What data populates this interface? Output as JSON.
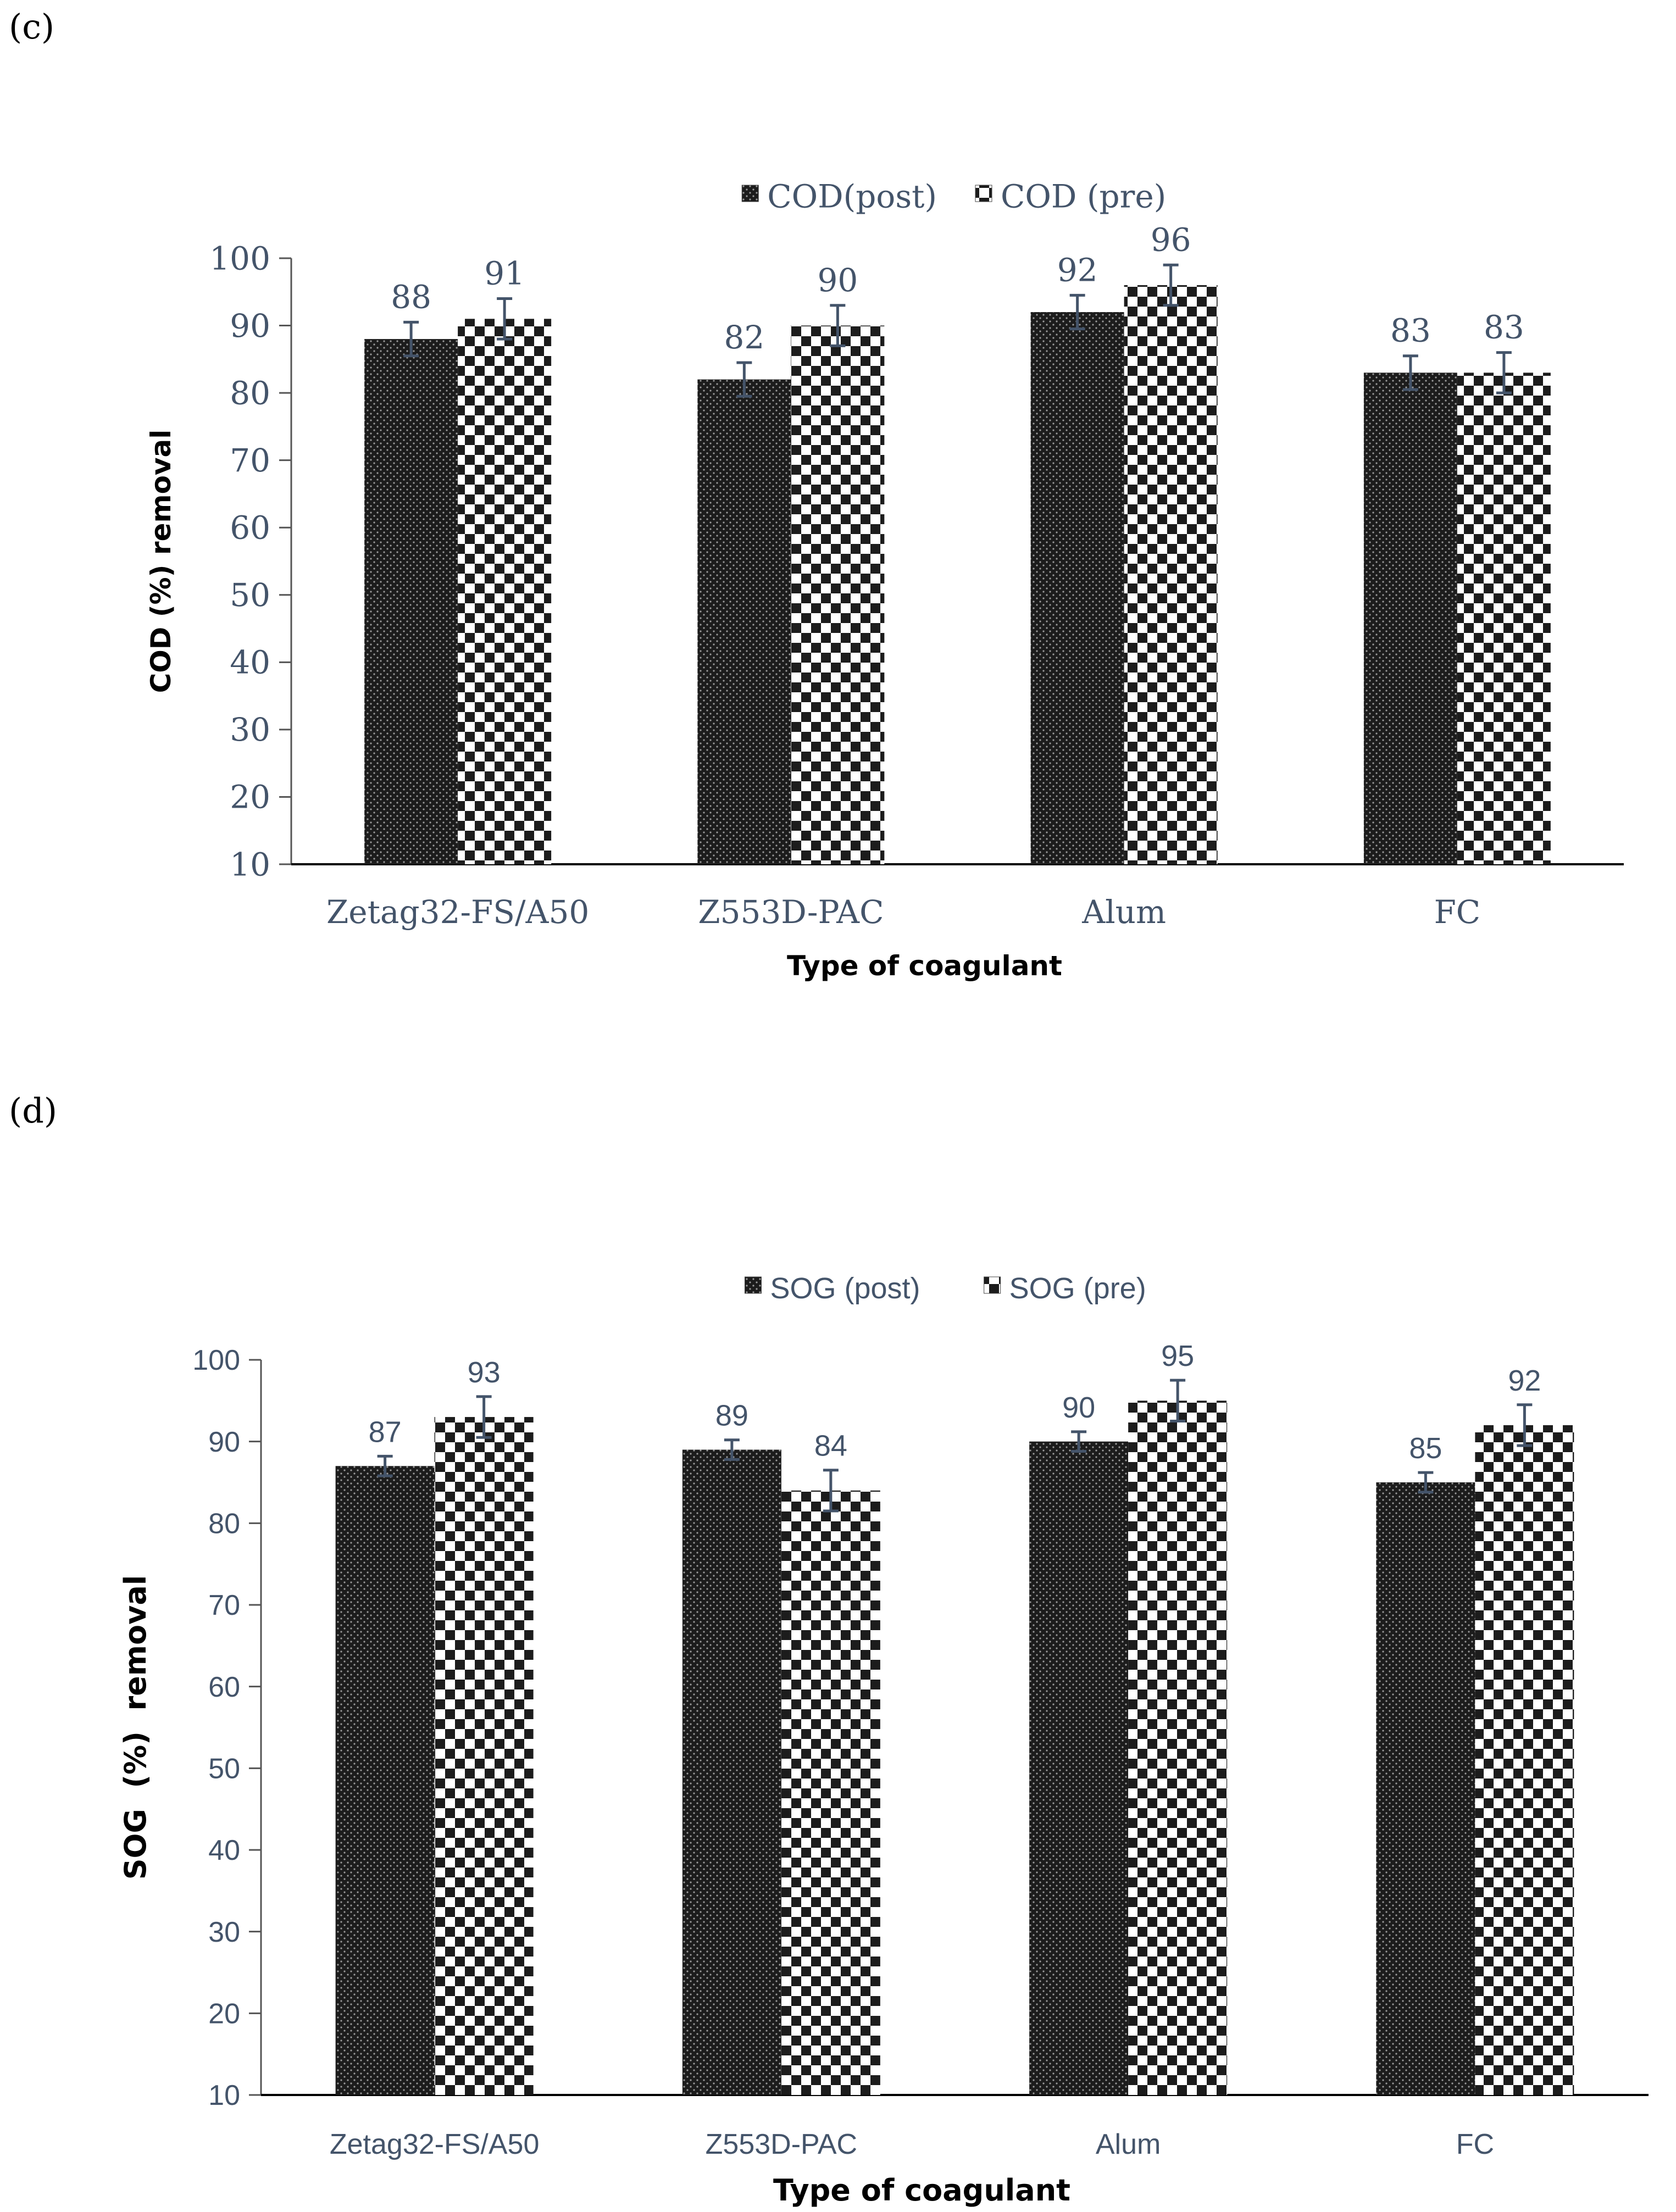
{
  "panels": {
    "c_label": "(c)",
    "d_label": "(d)"
  },
  "colors": {
    "bar_dark": "#1c1c1c",
    "axis": "#000000",
    "tick_text": "#44546a",
    "label_text": "#000000"
  },
  "chart_data": [
    {
      "id": "c",
      "type": "bar",
      "title": "",
      "xlabel": "Type of coagulant",
      "ylabel": "COD (%) removal",
      "ylim": [
        10,
        100
      ],
      "yticks": [
        10,
        20,
        30,
        40,
        50,
        60,
        70,
        80,
        90,
        100
      ],
      "categories": [
        "Zetag32-FS/A50",
        "Z553D-PAC",
        "Alum",
        "FC"
      ],
      "series": [
        {
          "name": "COD(post)",
          "pattern": "dots",
          "values": [
            88,
            82,
            92,
            83
          ],
          "value_labels": [
            "88",
            "82",
            "92",
            "83"
          ],
          "errors": [
            2.5,
            2.5,
            2.5,
            2.5
          ]
        },
        {
          "name": "COD (pre)",
          "pattern": "checker",
          "values": [
            91,
            90,
            96,
            83
          ],
          "value_labels": [
            "91",
            "90",
            "96",
            "83"
          ],
          "errors": [
            3,
            3,
            3,
            3
          ]
        }
      ],
      "legend": "top-center",
      "grid": false
    },
    {
      "id": "d",
      "type": "bar",
      "title": "",
      "xlabel": "Type of coagulant",
      "ylabel": "SOG  (%)  removal",
      "ylim": [
        10,
        100
      ],
      "yticks": [
        10,
        20,
        30,
        40,
        50,
        60,
        70,
        80,
        90,
        100
      ],
      "categories": [
        "Zetag32-FS/A50",
        "Z553D-PAC",
        "Alum",
        "FC"
      ],
      "series": [
        {
          "name": "SOG (post)",
          "pattern": "dots",
          "values": [
            87,
            89,
            90,
            85
          ],
          "value_labels": [
            "87",
            "89",
            "90",
            "85"
          ],
          "errors": [
            1.2,
            1.2,
            1.2,
            1.2
          ]
        },
        {
          "name": "SOG (pre)",
          "pattern": "checker",
          "values": [
            93,
            84,
            95,
            92
          ],
          "value_labels": [
            "93",
            "84",
            "95",
            "92"
          ],
          "errors": [
            2.5,
            2.5,
            2.5,
            2.5
          ]
        }
      ],
      "legend": "top-center",
      "grid": false
    }
  ]
}
